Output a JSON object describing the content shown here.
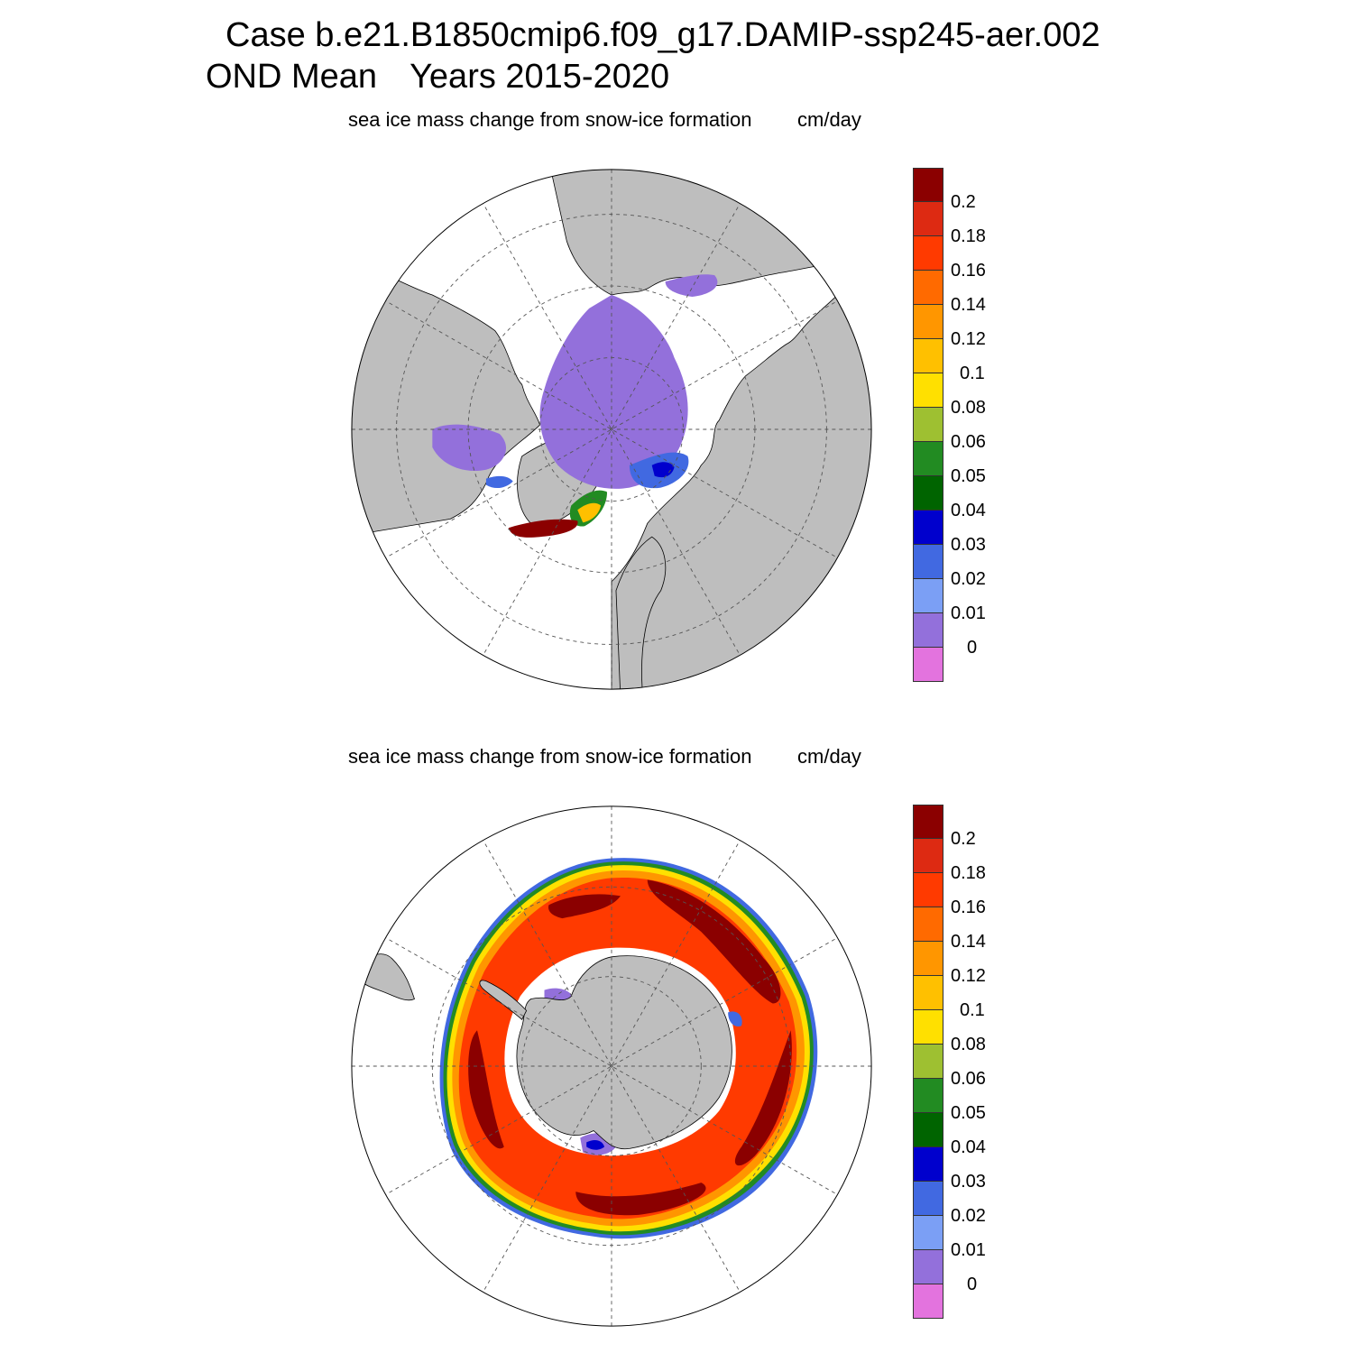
{
  "figure": {
    "title_line1": "Case b.e21.B1850cmip6.f09_g17.DAMIP-ssp245-aer.002",
    "title_line2a": "OND Mean",
    "title_line2b": "Years 2015-2020"
  },
  "panels": [
    {
      "id": "nh",
      "subtitle": "sea ice mass change from snow-ice formation",
      "units": "cm/day",
      "hemisphere": "Arctic (north polar stereographic)"
    },
    {
      "id": "sh",
      "subtitle": "sea ice mass change from snow-ice formation",
      "units": "cm/day",
      "hemisphere": "Antarctic (south polar stereographic)"
    }
  ],
  "colorbar": {
    "labels": [
      "0.2",
      "0.18",
      "0.16",
      "0.14",
      "0.12",
      "0.1",
      "0.08",
      "0.06",
      "0.05",
      "0.04",
      "0.03",
      "0.02",
      "0.01",
      "0"
    ],
    "colors": [
      "#8b0000",
      "#dd2a12",
      "#ff3a00",
      "#ff6a00",
      "#ff9600",
      "#ffc000",
      "#ffe000",
      "#9ec031",
      "#228b22",
      "#006400",
      "#0000cd",
      "#4169e1",
      "#7b9ff5",
      "#9370db",
      "#e373de"
    ]
  },
  "colors": {
    "land": "#bebebe",
    "ocean": "#ffffff",
    "grid": "#555555"
  }
}
